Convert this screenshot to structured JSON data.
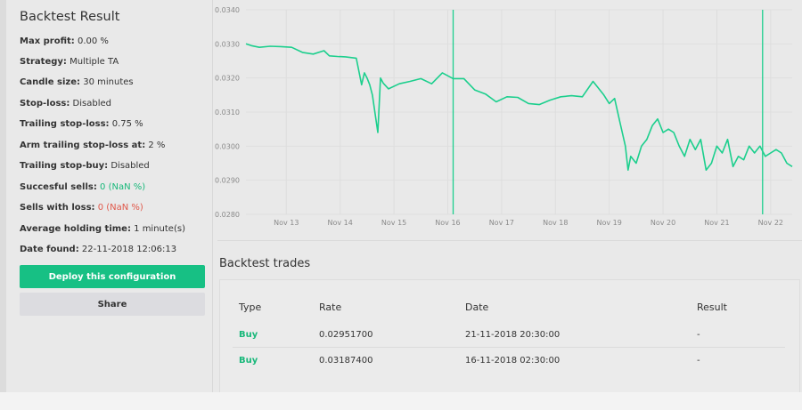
{
  "sidebar": {
    "title": "Backtest Result",
    "stats": [
      {
        "label": "Max profit:",
        "value": " 0.00 %",
        "color": "default"
      },
      {
        "label": "Strategy:",
        "value": " Multiple TA",
        "color": "default"
      },
      {
        "label": "Candle size:",
        "value": " 30 minutes",
        "color": "default"
      },
      {
        "label": "Stop-loss:",
        "value": " Disabled",
        "color": "default"
      },
      {
        "label": "Trailing stop-loss:",
        "value": " 0.75 %",
        "color": "default"
      },
      {
        "label": "Arm trailing stop-loss at:",
        "value": " 2 %",
        "color": "default"
      },
      {
        "label": "Trailing stop-buy:",
        "value": " Disabled",
        "color": "default"
      },
      {
        "label": "Succesful sells:",
        "value": " 0 (NaN %)",
        "color": "green"
      },
      {
        "label": "Sells with loss:",
        "value": " 0 (NaN %)",
        "color": "red"
      },
      {
        "label": "Average holding time:",
        "value": " 1 minute(s)",
        "color": "default"
      },
      {
        "label": "Date found:",
        "value": " 22-11-2018 12:06:13",
        "color": "default"
      }
    ],
    "deploy_label": "Deploy this configuration",
    "share_label": "Share"
  },
  "colors": {
    "accent": "#17c084",
    "positive": "#18b87a",
    "negative": "#e0584a",
    "line": "#1ccf8d"
  },
  "chart_data": {
    "type": "line",
    "title": "",
    "xlabel": "",
    "ylabel": "",
    "ylim": [
      0.028,
      0.034
    ],
    "xlim": [
      12.25,
      22.4
    ],
    "y_ticks": [
      "0.0340",
      "0.0330",
      "0.0320",
      "0.0310",
      "0.0300",
      "0.0290",
      "0.0280"
    ],
    "y_tick_values": [
      0.034,
      0.033,
      0.032,
      0.031,
      0.03,
      0.029,
      0.028
    ],
    "x_ticks": [
      "Nov 13",
      "Nov 14",
      "Nov 15",
      "Nov 16",
      "Nov 17",
      "Nov 18",
      "Nov 19",
      "Nov 20",
      "Nov 21",
      "Nov 22"
    ],
    "x_tick_values": [
      13,
      14,
      15,
      16,
      17,
      18,
      19,
      20,
      21,
      22
    ],
    "markers": [
      16.1,
      21.85
    ],
    "grid": true,
    "series": [
      {
        "x": [
          12.25,
          12.35,
          12.5,
          12.7,
          12.9,
          13.1,
          13.3,
          13.5,
          13.7,
          13.8,
          13.95,
          14.1,
          14.3,
          14.4,
          14.45,
          14.5,
          14.55,
          14.6,
          14.7,
          14.75,
          14.8,
          14.9,
          15.1,
          15.3,
          15.5,
          15.7,
          15.9,
          16.1,
          16.3,
          16.5,
          16.7,
          16.9,
          17.1,
          17.3,
          17.5,
          17.7,
          17.9,
          18.1,
          18.3,
          18.5,
          18.7,
          18.9,
          19.0,
          19.1,
          19.2,
          19.3,
          19.35,
          19.4,
          19.5,
          19.6,
          19.7,
          19.8,
          19.9,
          20.0,
          20.1,
          20.2,
          20.3,
          20.4,
          20.5,
          20.6,
          20.7,
          20.8,
          20.9,
          21.0,
          21.1,
          21.2,
          21.3,
          21.4,
          21.5,
          21.6,
          21.7,
          21.8,
          21.9,
          22.0,
          22.1,
          22.2,
          22.3,
          22.4
        ],
        "y": [
          0.033,
          0.03295,
          0.0329,
          0.03293,
          0.03292,
          0.0329,
          0.03275,
          0.0327,
          0.0328,
          0.03265,
          0.03263,
          0.03262,
          0.03258,
          0.0318,
          0.03215,
          0.032,
          0.0318,
          0.0315,
          0.0304,
          0.032,
          0.03185,
          0.03168,
          0.03183,
          0.0319,
          0.03198,
          0.03183,
          0.03215,
          0.03198,
          0.03198,
          0.03165,
          0.03153,
          0.0313,
          0.03145,
          0.03143,
          0.03125,
          0.03122,
          0.03135,
          0.03145,
          0.03148,
          0.03145,
          0.0319,
          0.0315,
          0.03125,
          0.0314,
          0.0307,
          0.03,
          0.0293,
          0.0297,
          0.0295,
          0.03,
          0.0302,
          0.0306,
          0.0308,
          0.0304,
          0.0305,
          0.0304,
          0.03,
          0.0297,
          0.0302,
          0.0299,
          0.0302,
          0.0293,
          0.0295,
          0.03,
          0.0298,
          0.0302,
          0.0294,
          0.0297,
          0.0296,
          0.03,
          0.0298,
          0.03,
          0.0297,
          0.0298,
          0.0299,
          0.0298,
          0.0295,
          0.0294
        ]
      }
    ]
  },
  "trades": {
    "title": "Backtest trades",
    "columns": [
      "Type",
      "Rate",
      "Date",
      "Result"
    ],
    "rows": [
      {
        "type": "Buy",
        "rate": "0.02951700",
        "date": "21-11-2018 20:30:00",
        "result": "-"
      },
      {
        "type": "Buy",
        "rate": "0.03187400",
        "date": "16-11-2018 02:30:00",
        "result": "-"
      }
    ]
  }
}
